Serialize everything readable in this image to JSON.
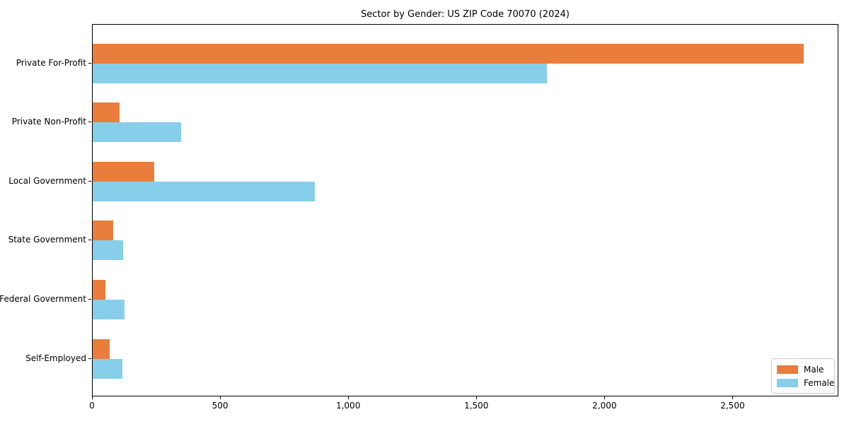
{
  "chart_data": {
    "type": "bar",
    "orientation": "horizontal",
    "title": "Sector by Gender: US ZIP Code 70070 (2024)",
    "categories": [
      "Private For-Profit",
      "Private Non-Profit",
      "Local Government",
      "State Government",
      "Federal Government",
      "Self-Employed"
    ],
    "series": [
      {
        "name": "Male",
        "color": "#e87d3c",
        "values": [
          2774,
          104,
          239,
          79,
          51,
          65
        ]
      },
      {
        "name": "Female",
        "color": "#87ceeb",
        "values": [
          1773,
          345,
          868,
          118,
          125,
          116
        ]
      }
    ],
    "xlabel": "",
    "ylabel": "",
    "xlim": [
      0,
      2913
    ],
    "xticks": [
      0,
      500,
      1000,
      1500,
      2000,
      2500
    ],
    "xtick_labels": [
      "0",
      "500",
      "1,000",
      "1,500",
      "2,000",
      "2,500"
    ],
    "grid": false,
    "legend_position": "lower right",
    "background_color": "#ffffff",
    "spine_color": "#000000"
  }
}
